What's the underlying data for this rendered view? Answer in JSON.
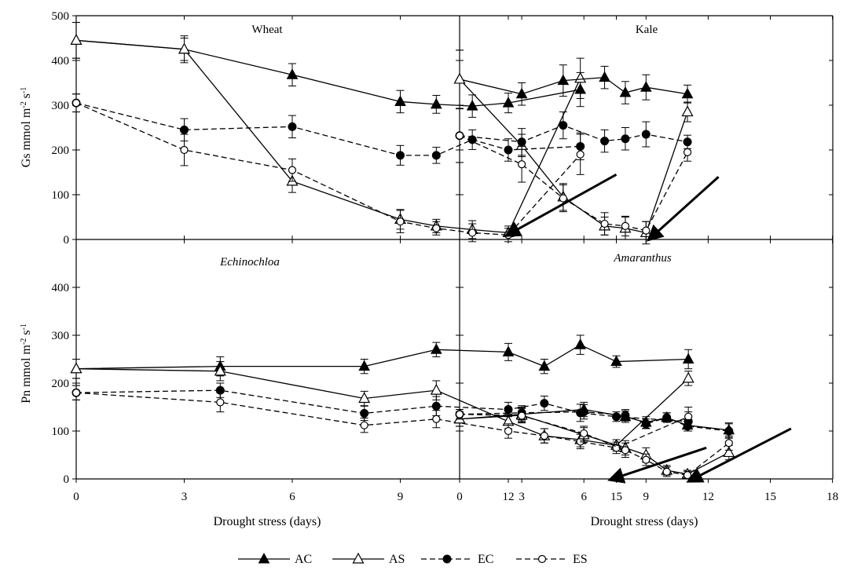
{
  "chart_data": [
    {
      "type": "line",
      "panel": "top-left",
      "title": "Wheat",
      "title_italic": false,
      "ylabel": "Gs mmol m-2 s-1",
      "ylim": [
        0,
        500
      ],
      "xlim": [
        0,
        17
      ],
      "series": [
        {
          "name": "AC",
          "x": [
            0,
            3,
            6,
            9,
            10,
            11,
            12,
            14
          ],
          "y": [
            445,
            425,
            368,
            308,
            302,
            298,
            305,
            335
          ],
          "err": [
            40,
            30,
            25,
            25,
            20,
            25,
            22,
            38
          ]
        },
        {
          "name": "AS",
          "x": [
            0,
            3,
            6,
            9,
            10,
            11,
            12,
            14
          ],
          "y": [
            445,
            425,
            130,
            45,
            30,
            22,
            15,
            360
          ],
          "err": [
            40,
            25,
            25,
            22,
            15,
            20,
            15,
            45
          ]
        },
        {
          "name": "EC",
          "x": [
            0,
            3,
            6,
            9,
            10,
            11,
            12,
            14
          ],
          "y": [
            305,
            245,
            252,
            188,
            188,
            223,
            200,
            208
          ],
          "err": [
            20,
            25,
            25,
            22,
            18,
            22,
            25,
            30
          ]
        },
        {
          "name": "ES",
          "x": [
            0,
            3,
            6,
            9,
            10,
            11,
            12,
            14
          ],
          "y": [
            305,
            200,
            155,
            40,
            25,
            15,
            10,
            190
          ],
          "err": [
            20,
            35,
            25,
            25,
            15,
            20,
            15,
            45
          ]
        }
      ],
      "arrow": {
        "from": [
          15,
          145
        ],
        "to": [
          12.2,
          20
        ]
      }
    },
    {
      "type": "line",
      "panel": "top-right",
      "title": "Kale",
      "title_italic": false,
      "ylim": [
        0,
        500
      ],
      "xlim": [
        0,
        18
      ],
      "series": [
        {
          "name": "AC",
          "x": [
            0,
            3,
            5,
            7,
            8,
            9,
            11
          ],
          "y": [
            358,
            325,
            355,
            362,
            328,
            340,
            325
          ],
          "err": [
            65,
            25,
            35,
            25,
            25,
            28,
            20
          ]
        },
        {
          "name": "AS",
          "x": [
            0,
            3,
            5,
            7,
            8,
            9,
            11
          ],
          "y": [
            358,
            210,
            95,
            30,
            25,
            15,
            285
          ],
          "err": [
            65,
            25,
            30,
            20,
            25,
            25,
            22
          ]
        },
        {
          "name": "EC",
          "x": [
            0,
            3,
            5,
            7,
            8,
            9,
            11
          ],
          "y": [
            232,
            218,
            255,
            220,
            225,
            235,
            218
          ],
          "err": [
            60,
            30,
            30,
            25,
            25,
            28,
            15
          ]
        },
        {
          "name": "ES",
          "x": [
            0,
            3,
            5,
            7,
            8,
            9,
            11
          ],
          "y": [
            232,
            168,
            92,
            35,
            30,
            20,
            195
          ],
          "err": [
            60,
            40,
            30,
            25,
            22,
            20,
            20
          ]
        }
      ],
      "arrow": {
        "from": [
          12.5,
          140
        ],
        "to": [
          9.5,
          15
        ]
      }
    },
    {
      "type": "line",
      "panel": "bottom-left",
      "title": "Echinochloa",
      "title_italic": true,
      "ylabel": "Pn mmol m-2 s-1",
      "xlabel": "Drought stress (days)",
      "xticks": [
        0,
        3,
        6,
        9,
        12,
        15
      ],
      "ylim": [
        0,
        500
      ],
      "xlim": [
        0,
        17
      ],
      "series": [
        {
          "name": "AC",
          "x": [
            0,
            4,
            8,
            10,
            12,
            13,
            14,
            15,
            17
          ],
          "y": [
            230,
            235,
            235,
            270,
            265,
            235,
            280,
            245,
            250
          ],
          "err": [
            20,
            20,
            15,
            15,
            18,
            15,
            20,
            12,
            20
          ]
        },
        {
          "name": "AS",
          "x": [
            0,
            4,
            8,
            10,
            12,
            13,
            14,
            15,
            17
          ],
          "y": [
            230,
            225,
            168,
            185,
            120,
            90,
            82,
            70,
            210
          ],
          "err": [
            20,
            20,
            15,
            20,
            15,
            15,
            15,
            12,
            15
          ]
        },
        {
          "name": "EC",
          "x": [
            0,
            4,
            8,
            10,
            12,
            13,
            14,
            15,
            17
          ],
          "y": [
            180,
            185,
            137,
            152,
            145,
            158,
            138,
            130,
            120
          ],
          "err": [
            15,
            15,
            15,
            20,
            15,
            15,
            18,
            10,
            20
          ]
        },
        {
          "name": "ES",
          "x": [
            0,
            4,
            8,
            10,
            12,
            13,
            14,
            15,
            17
          ],
          "y": [
            180,
            160,
            112,
            125,
            100,
            90,
            78,
            65,
            130
          ],
          "err": [
            15,
            20,
            15,
            18,
            15,
            15,
            15,
            12,
            20
          ]
        }
      ],
      "arrow": {
        "from": [
          17.5,
          65
        ],
        "to": [
          15.1,
          5
        ]
      }
    },
    {
      "type": "line",
      "panel": "bottom-right",
      "title": "Amaranthus",
      "title_italic": true,
      "xlabel": "Drought stress (days)",
      "xticks": [
        0,
        3,
        6,
        9,
        12,
        15,
        18
      ],
      "ylim": [
        0,
        500
      ],
      "xlim": [
        0,
        18
      ],
      "series": [
        {
          "name": "AC",
          "x": [
            0,
            3,
            6,
            8,
            9,
            10,
            11,
            13
          ],
          "y": [
            125,
            135,
            145,
            130,
            118,
            128,
            112,
            102
          ],
          "err": [
            15,
            15,
            15,
            12,
            12,
            10,
            12,
            15
          ]
        },
        {
          "name": "AS",
          "x": [
            0,
            3,
            6,
            8,
            9,
            10,
            11,
            13
          ],
          "y": [
            125,
            133,
            92,
            65,
            50,
            18,
            10,
            55
          ],
          "err": [
            15,
            15,
            15,
            15,
            15,
            10,
            8,
            15
          ]
        },
        {
          "name": "EC",
          "x": [
            0,
            3,
            6,
            8,
            9,
            10,
            11,
            13
          ],
          "y": [
            135,
            138,
            140,
            133,
            115,
            128,
            110,
            100
          ],
          "err": [
            10,
            15,
            15,
            12,
            10,
            10,
            10,
            15
          ]
        },
        {
          "name": "ES",
          "x": [
            0,
            3,
            6,
            8,
            9,
            10,
            11,
            13
          ],
          "y": [
            135,
            132,
            95,
            60,
            40,
            15,
            8,
            75
          ],
          "err": [
            10,
            15,
            15,
            15,
            12,
            10,
            8,
            15
          ]
        }
      ],
      "arrow": {
        "from": [
          16,
          105
        ],
        "to": [
          11.5,
          5
        ]
      }
    }
  ],
  "yticks": [
    "0",
    "100",
    "200",
    "300",
    "400",
    "500"
  ],
  "yticks_bottom": [
    "0",
    "100",
    "200",
    "300",
    "400"
  ],
  "legend": [
    {
      "name": "AC",
      "line": "solid",
      "marker": "filled-triangle"
    },
    {
      "name": "AS",
      "line": "solid",
      "marker": "open-triangle"
    },
    {
      "name": "EC",
      "line": "dashed",
      "marker": "filled-circle"
    },
    {
      "name": "ES",
      "line": "dashed",
      "marker": "open-circle"
    }
  ],
  "colors": {
    "ink": "#000000",
    "background": "#ffffff"
  }
}
